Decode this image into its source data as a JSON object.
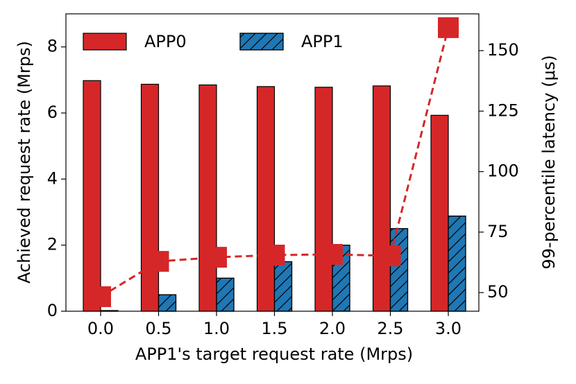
{
  "chart_data": {
    "type": "bar",
    "xlabel": "APP1's target request rate (Mrps)",
    "ylabel": "Achieved request rate (Mrps)",
    "y2label": "99-percentile latency (μs)",
    "categories": [
      "0.0",
      "0.5",
      "1.0",
      "1.5",
      "2.0",
      "2.5",
      "3.0"
    ],
    "series": [
      {
        "name": "APP0",
        "color": "#d62728",
        "values": [
          6.98,
          6.87,
          6.85,
          6.8,
          6.78,
          6.82,
          5.93
        ]
      },
      {
        "name": "APP1",
        "color": "#1f77b4",
        "hatch": "/",
        "values": [
          0.02,
          0.5,
          1.0,
          1.5,
          2.0,
          2.5,
          2.88
        ]
      }
    ],
    "line": {
      "color": "#d62728",
      "axis": "y2",
      "values": [
        48.3,
        62.9,
        64.6,
        65.5,
        65.8,
        65.2,
        159.5
      ]
    },
    "ylim": [
      0,
      9
    ],
    "yticks": [
      0,
      2,
      4,
      6,
      8
    ],
    "y2lim": [
      42.3,
      165.2
    ],
    "y2ticks": [
      50,
      75,
      100,
      125,
      150
    ],
    "legend": "upper left"
  }
}
